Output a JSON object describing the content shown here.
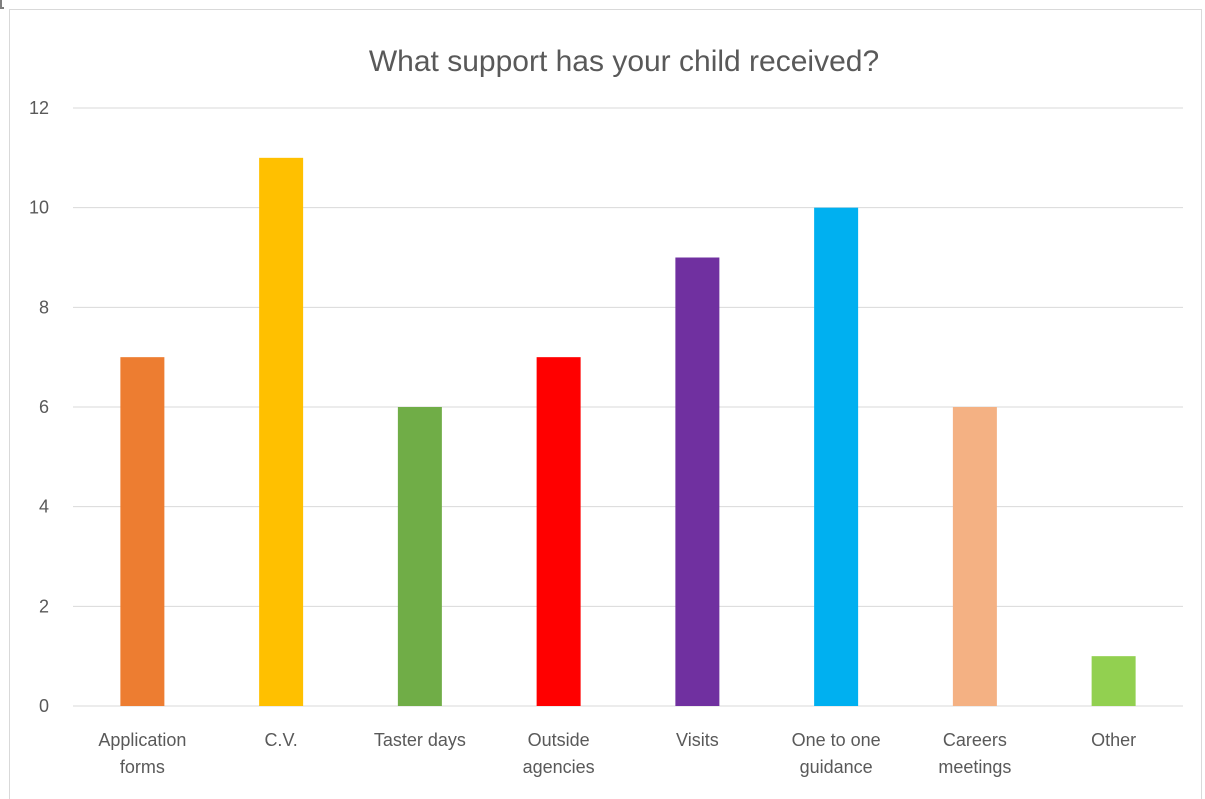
{
  "chart_data": {
    "type": "bar",
    "title": "What support has your child received?",
    "categories": [
      [
        "Application",
        "forms"
      ],
      [
        "C.V."
      ],
      [
        "Taster days"
      ],
      [
        "Outside",
        "agencies"
      ],
      [
        "Visits"
      ],
      [
        "One to one",
        "guidance"
      ],
      [
        "Careers",
        "meetings"
      ],
      [
        "Other"
      ]
    ],
    "values": [
      7,
      11,
      6,
      7,
      9,
      10,
      6,
      1
    ],
    "colors": [
      "#ED7D31",
      "#FFC000",
      "#70AD47",
      "#FF0000",
      "#7030A0",
      "#00B0F0",
      "#F4B183",
      "#92D050"
    ],
    "ylim": [
      0,
      12
    ],
    "yticks": [
      0,
      2,
      4,
      6,
      8,
      10,
      12
    ],
    "grid": true,
    "gridColor": "#d9d9d9",
    "textColor": "#595959"
  }
}
